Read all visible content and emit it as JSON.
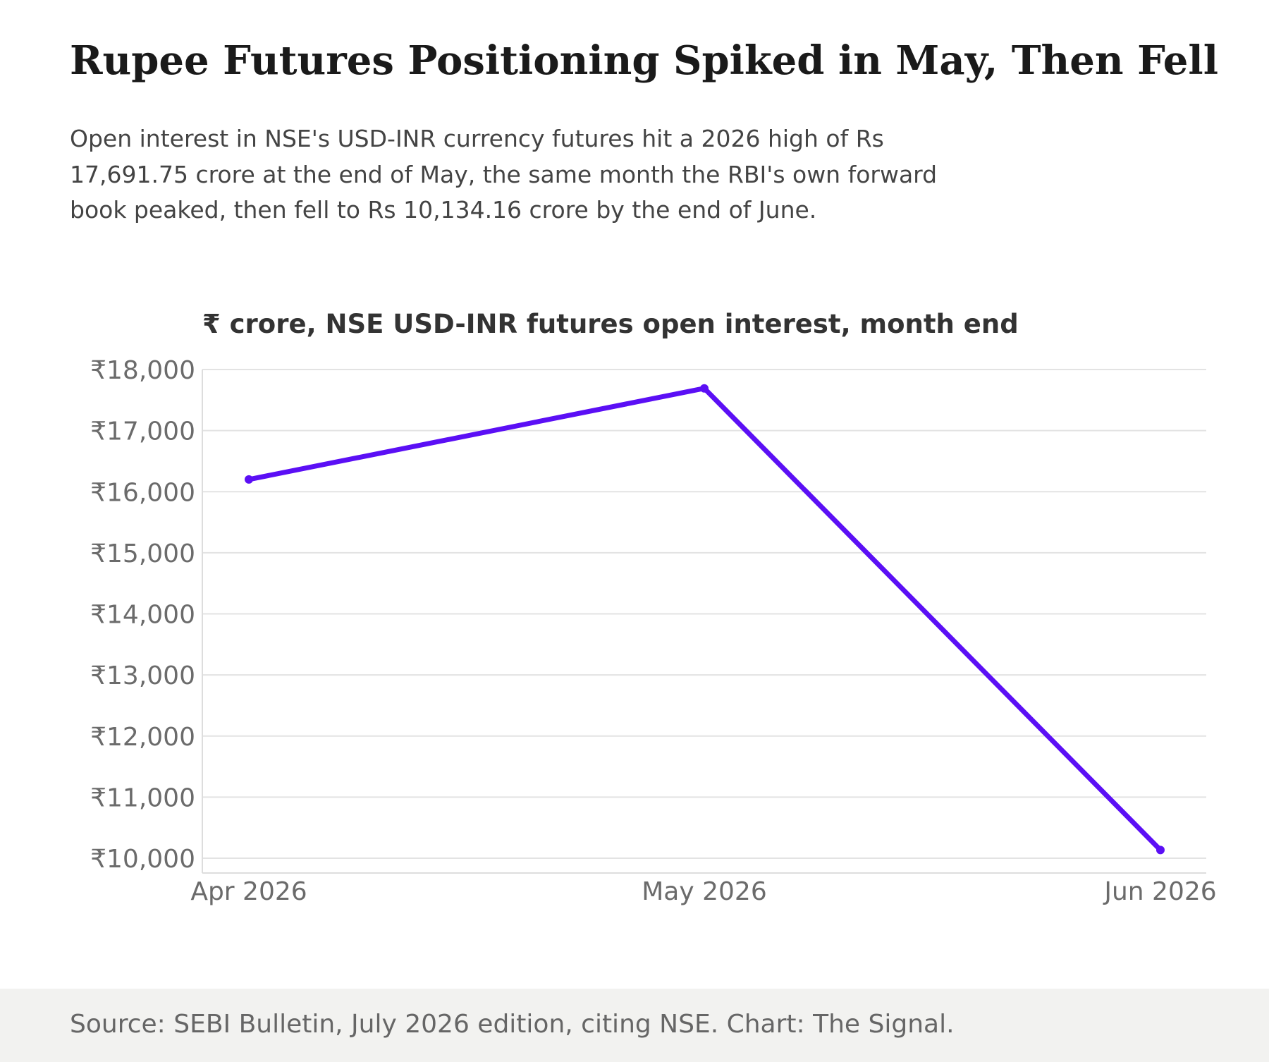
{
  "header": {
    "title": "Rupee Futures Positioning Spiked in May, Then Fell",
    "subtitle": "Open interest in NSE's USD-INR currency futures hit a 2026 high of Rs 17,691.75 crore at the end of May, the same month the RBI's own forward book peaked, then fell to Rs 10,134.16 crore by the end of June."
  },
  "chart_data": {
    "type": "line",
    "title": "₹ crore, NSE USD-INR futures open interest, month end",
    "xlabel": "",
    "ylabel": "",
    "categories": [
      "Apr 2026",
      "May 2026",
      "Jun 2026"
    ],
    "series": [
      {
        "values": [
          16200,
          17691.75,
          10134.16
        ]
      }
    ],
    "ylim": [
      10000,
      18000
    ],
    "yticks": [
      10000,
      11000,
      12000,
      13000,
      14000,
      15000,
      16000,
      17000,
      18000
    ],
    "ytick_labels": [
      "₹10,000",
      "₹11,000",
      "₹12,000",
      "₹13,000",
      "₹14,000",
      "₹15,000",
      "₹16,000",
      "₹17,000",
      "₹18,000"
    ],
    "grid": true,
    "legend": "none",
    "line_color": "#5b0ff5"
  },
  "footer": {
    "source": "Source: SEBI Bulletin, July 2026 edition, citing NSE. Chart: The Signal."
  }
}
